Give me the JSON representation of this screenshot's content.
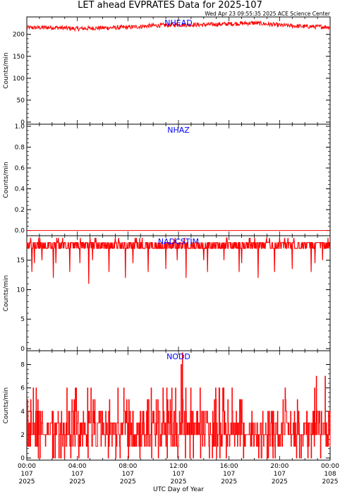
{
  "title": "LET ahead EVPRATES Data for 2025-107",
  "timestamp": "Wed Apr 23 09:55:35 2025 ACE Science Center",
  "xlabel": "UTC Day of Year",
  "colors": {
    "data": "#ff0000",
    "panel_label": "#0000ff",
    "axes": "#000000"
  },
  "x_ticks": [
    {
      "time": "00:00",
      "day": "107",
      "year": "2025"
    },
    {
      "time": "04:00",
      "day": "107",
      "year": "2025"
    },
    {
      "time": "08:00",
      "day": "107",
      "year": "2025"
    },
    {
      "time": "12:00",
      "day": "107",
      "year": "2025"
    },
    {
      "time": "16:00",
      "day": "107",
      "year": "2025"
    },
    {
      "time": "20:00",
      "day": "107",
      "year": "2025"
    },
    {
      "time": "00:00",
      "day": "108",
      "year": "2025"
    }
  ],
  "chart_data": [
    {
      "type": "line",
      "name": "NHEAD",
      "ylabel": "Counts/min",
      "ylim": [
        0,
        235
      ],
      "yticks": [
        0,
        50,
        100,
        150,
        200
      ],
      "xlim_hours": [
        0,
        24
      ],
      "description_values": "Counts/min hovering ~210-225 all day, slight rise to ~225 around 10:00-19:00",
      "series_profile": {
        "x_hours": [
          0,
          2,
          4,
          6,
          8,
          10,
          12,
          14,
          16,
          18,
          20,
          22,
          24
        ],
        "y": [
          215,
          216,
          213,
          215,
          216,
          220,
          222,
          222,
          224,
          226,
          221,
          218,
          217
        ],
        "noise": 5
      }
    },
    {
      "type": "line",
      "name": "NHAZ",
      "ylabel": "Counts/min",
      "ylim": [
        -0.03,
        1.0
      ],
      "yticks": [
        0.0,
        0.2,
        0.4,
        0.6,
        0.8,
        1.0
      ],
      "xlim_hours": [
        0,
        24
      ],
      "series_profile": {
        "x_hours": [
          0,
          24
        ],
        "y": [
          0,
          0
        ],
        "noise": 0
      }
    },
    {
      "type": "line",
      "name": "NADCSTIM",
      "ylabel": "Counts/min",
      "ylim": [
        0,
        18.8
      ],
      "yticks": [
        0,
        5,
        10,
        15
      ],
      "xlim_hours": [
        0,
        24
      ],
      "baseline_band": [
        17,
        18
      ],
      "spikes_up_to": 18.8,
      "dips": [
        {
          "hour": 0.4,
          "value": 13
        },
        {
          "hour": 0.6,
          "value": 14.5
        },
        {
          "hour": 1.2,
          "value": 15
        },
        {
          "hour": 2.1,
          "value": 12
        },
        {
          "hour": 2.3,
          "value": 14.5
        },
        {
          "hour": 3.4,
          "value": 13
        },
        {
          "hour": 4.2,
          "value": 14.5
        },
        {
          "hour": 4.9,
          "value": 11
        },
        {
          "hour": 5.2,
          "value": 15
        },
        {
          "hour": 6.5,
          "value": 13
        },
        {
          "hour": 7.8,
          "value": 12
        },
        {
          "hour": 8.4,
          "value": 14.5
        },
        {
          "hour": 9.6,
          "value": 13
        },
        {
          "hour": 11.0,
          "value": 13.5
        },
        {
          "hour": 11.9,
          "value": 15
        },
        {
          "hour": 12.6,
          "value": 12
        },
        {
          "hour": 14.0,
          "value": 15
        },
        {
          "hour": 14.3,
          "value": 13
        },
        {
          "hour": 15.6,
          "value": 15
        },
        {
          "hour": 16.8,
          "value": 13
        },
        {
          "hour": 17.0,
          "value": 14.5
        },
        {
          "hour": 18.3,
          "value": 12
        },
        {
          "hour": 19.6,
          "value": 13
        },
        {
          "hour": 21.0,
          "value": 13.5
        },
        {
          "hour": 22.5,
          "value": 13
        },
        {
          "hour": 22.8,
          "value": 14.5
        },
        {
          "hour": 23.4,
          "value": 15
        }
      ]
    },
    {
      "type": "line",
      "name": "NODD",
      "ylabel": "Counts/min",
      "ylim": [
        0,
        9
      ],
      "yticks": [
        0,
        2,
        4,
        6,
        8
      ],
      "xlim_hours": [
        0,
        24
      ],
      "description_values": "Integer counts 0-6 switching rapidly, mostly between 1 and 4, occasional peaks to 7-9",
      "peaks": [
        {
          "hour": 12.3,
          "value": 9
        },
        {
          "hour": 12.2,
          "value": 8
        },
        {
          "hour": 22.9,
          "value": 7
        },
        {
          "hour": 23.6,
          "value": 7
        }
      ]
    }
  ]
}
